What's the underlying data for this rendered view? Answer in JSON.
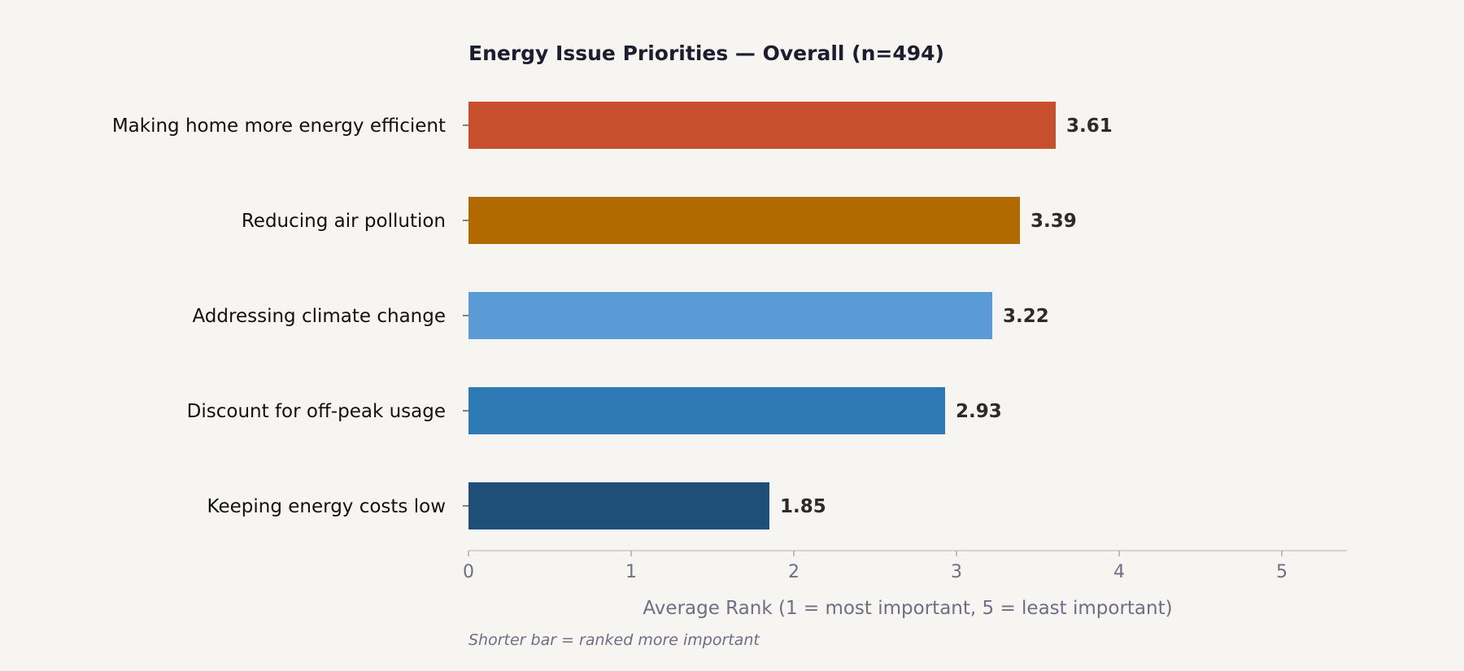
{
  "chart_data": {
    "type": "bar",
    "orientation": "horizontal",
    "title": "Energy Issue Priorities — Overall  (n=494)",
    "categories": [
      "Making home more energy efficient",
      "Reducing air pollution",
      "Addressing climate change",
      "Discount for off-peak usage",
      "Keeping energy costs low"
    ],
    "values": [
      3.61,
      3.39,
      3.22,
      2.93,
      1.85
    ],
    "value_labels": [
      "3.61",
      "3.39",
      "3.22",
      "2.93",
      "1.85"
    ],
    "colors": [
      "#c84f2d",
      "#b06a00",
      "#5b9bd5",
      "#2e7ab5",
      "#1f4e79"
    ],
    "xlabel": "Average Rank  (1 = most important,  5 = least important)",
    "ylabel": "",
    "xlim": [
      0,
      5.4
    ],
    "xticks": [
      0,
      1,
      2,
      3,
      4,
      5
    ],
    "xtick_labels": [
      "0",
      "1",
      "2",
      "3",
      "4",
      "5"
    ],
    "grid": false,
    "legend": "none",
    "note": "Shorter bar = ranked more important"
  }
}
